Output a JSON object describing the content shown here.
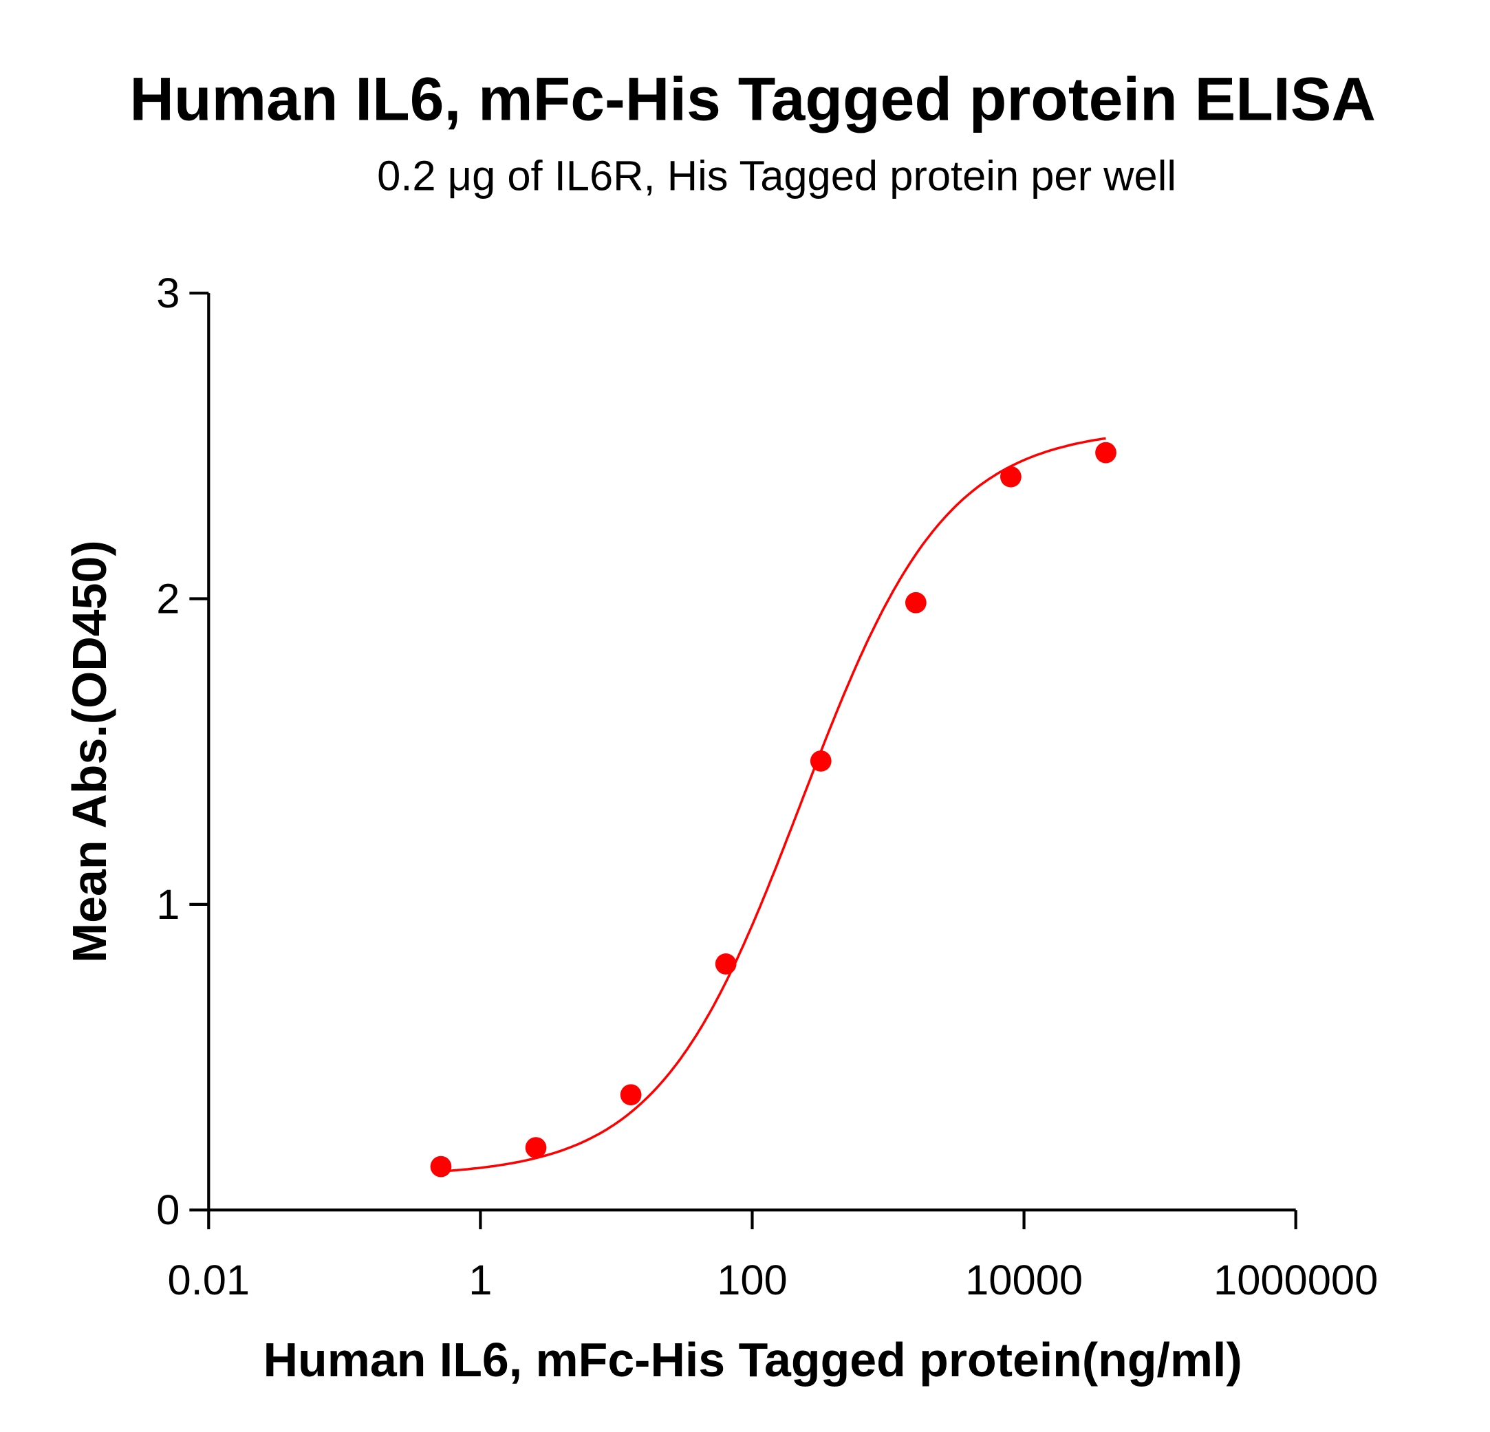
{
  "chart_data": {
    "type": "scatter",
    "title": "Human IL6, mFc-His Tagged protein ELISA",
    "subtitle": "0.2 μg of IL6R, His Tagged protein per well",
    "xlabel": "Human IL6, mFc-His Tagged protein(ng/ml)",
    "ylabel": "Mean Abs.(OD450)",
    "xscale": "log10",
    "xlim": [
      0.01,
      1000000
    ],
    "ylim": [
      0,
      3
    ],
    "xticks": [
      "0.01",
      "1",
      "100",
      "10000",
      "1000000"
    ],
    "xtick_values": [
      0.01,
      1,
      100,
      10000,
      1000000
    ],
    "yticks": [
      "0",
      "1",
      "2",
      "3"
    ],
    "ytick_values": [
      0,
      1,
      2,
      3
    ],
    "grid": false,
    "color": "#ff0000",
    "series": [
      {
        "name": "Human IL6, mFc-His Tagged protein",
        "x": [
          0.512,
          2.56,
          12.8,
          64,
          320,
          1600,
          8000,
          40000
        ],
        "y": [
          0.142,
          0.204,
          0.377,
          0.805,
          1.469,
          1.987,
          2.399,
          2.478
        ],
        "fit": {
          "model": "4PL",
          "bottom": 0.11,
          "top": 2.56,
          "ec50": 230,
          "hill": 0.82
        }
      }
    ]
  }
}
